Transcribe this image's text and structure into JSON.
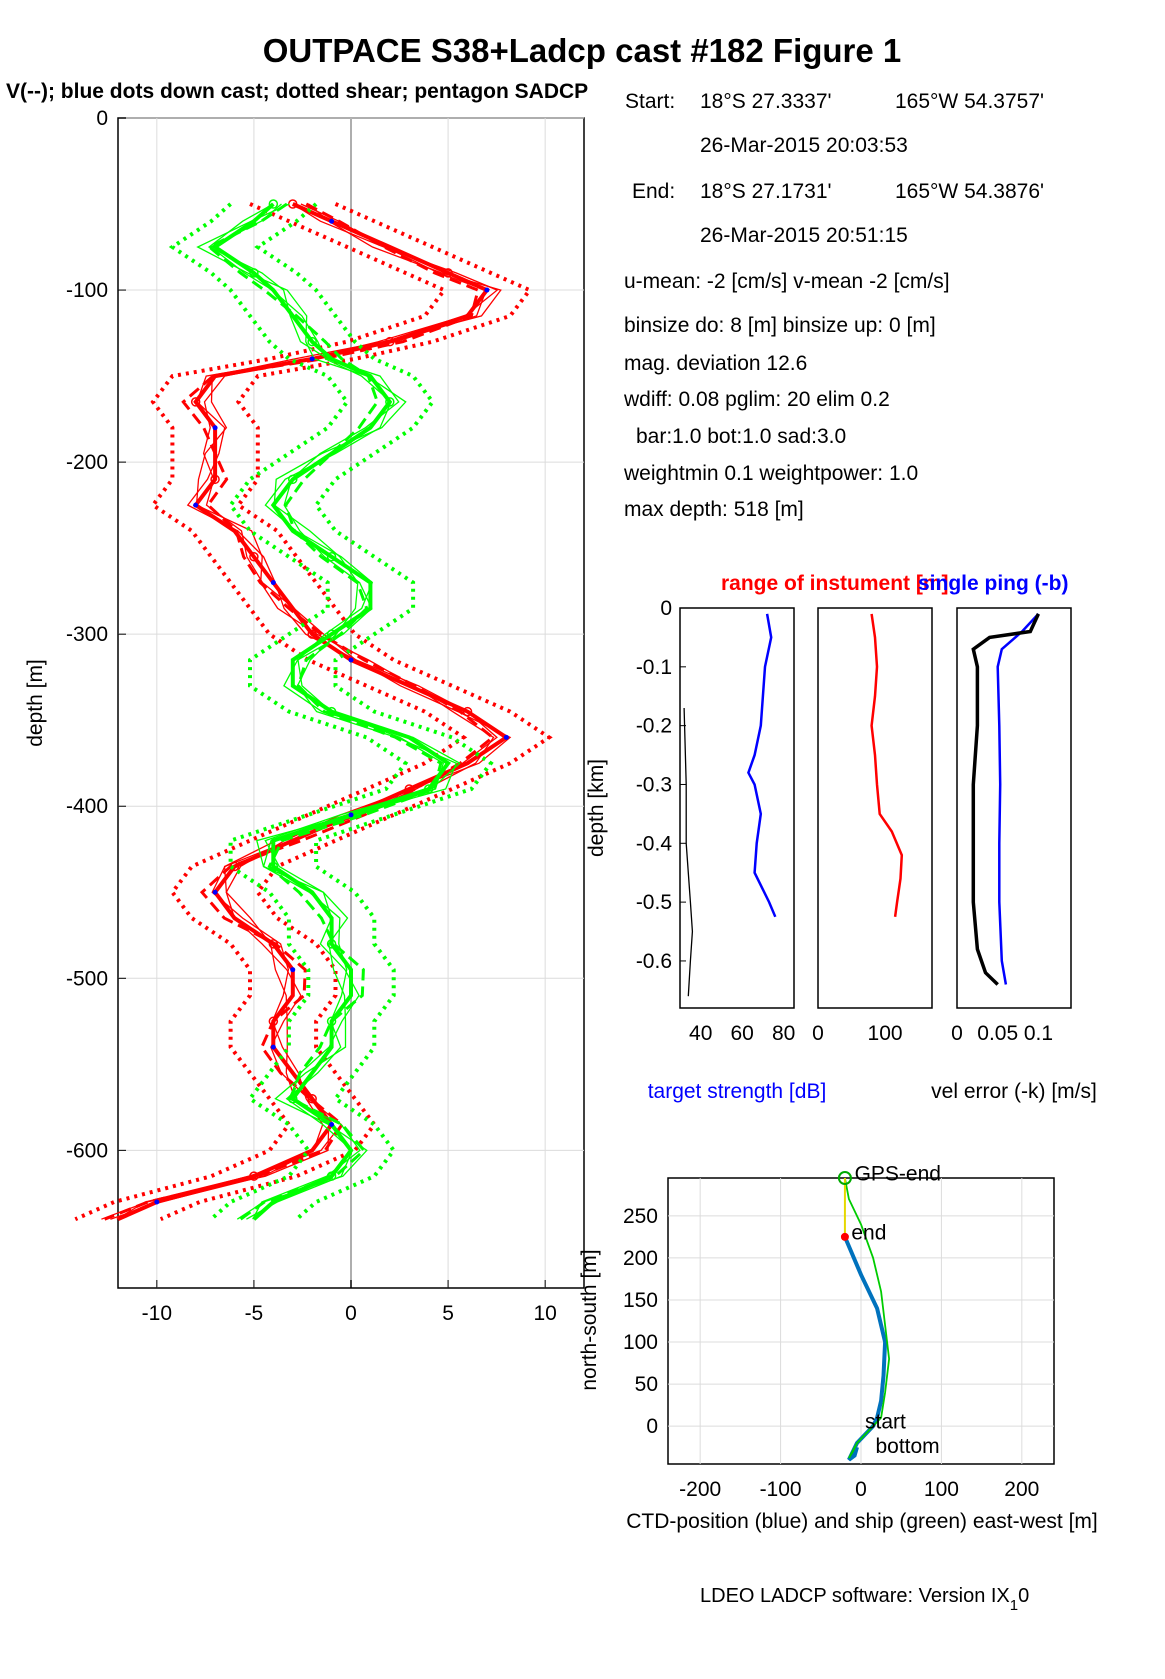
{
  "title": "OUTPACE S38+Ladcp cast #182  Figure 1",
  "subtitle": "V(--); blue dots down cast; dotted shear; pentagon SADCP",
  "info": {
    "start_label": "Start:",
    "start_lat": "18°S 27.3337'",
    "start_lon": "165°W 54.3757'",
    "start_time": "26-Mar-2015 20:03:53",
    "end_label": "End:",
    "end_lat": "18°S 27.1731'",
    "end_lon": "165°W 54.3876'",
    "end_time": "26-Mar-2015 20:51:15",
    "umean": "u-mean:  -2 [cm/s]    v-mean  -2 [cm/s]",
    "binsize": "binsize do: 8 [m]  binsize up:  0 [m]",
    "magdev": "mag. deviation 12.6",
    "wdiff": "wdiff: 0.08  pglim: 20  elim 0.2",
    "bar": "bar:1.0 bot:1.0 sad:3.0",
    "weight": "weightmin 0.1  weightpower: 1.0",
    "maxdepth": "max depth: 518 [m]"
  },
  "footer": "LDEO LADCP software: Version IX",
  "footer_sub": "1",
  "footer_end": "0",
  "colors": {
    "u": "#ff0000",
    "v": "#00ff00",
    "dots": "#0000ff",
    "ts": "#0000ff",
    "ctd": "#0072bd",
    "ship": "#00cc00"
  },
  "chart_data": [
    {
      "type": "line",
      "id": "velocity-profile",
      "ylabel": "depth [m]",
      "xlim": [
        -12,
        12
      ],
      "ylim": [
        -680,
        0
      ],
      "xticks": [
        "-10",
        "-5",
        "0",
        "5",
        "10"
      ],
      "yticks": [
        "0",
        "-100",
        "-200",
        "-300",
        "-400",
        "-500",
        "-600"
      ],
      "grid": true,
      "series": [
        {
          "color": "red",
          "depth": [
            -50,
            -60,
            -75,
            -90,
            -100,
            -115,
            -130,
            -140,
            -150,
            -165,
            -180,
            -195,
            -210,
            -225,
            -240,
            -255,
            -270,
            -285,
            -300,
            -315,
            -330,
            -345,
            -360,
            -375,
            -390,
            -405,
            -420,
            -435,
            -450,
            -465,
            -480,
            -495,
            -510,
            -525,
            -540,
            -555,
            -570,
            -585,
            -600,
            -615,
            -630,
            -640
          ],
          "u": [
            -3,
            -1,
            2,
            5,
            7,
            6,
            2,
            -2,
            -7,
            -8,
            -7,
            -7,
            -7,
            -8,
            -6,
            -5,
            -4,
            -3,
            -2,
            0,
            3,
            6,
            8,
            6,
            3,
            0,
            -3,
            -6,
            -7,
            -6,
            -4,
            -3,
            -3,
            -4,
            -4,
            -3,
            -2,
            -1,
            -2,
            -5,
            -10,
            -12
          ]
        },
        {
          "color": "green",
          "depth": [
            -50,
            -60,
            -75,
            -90,
            -100,
            -115,
            -130,
            -140,
            -150,
            -165,
            -180,
            -195,
            -210,
            -225,
            -240,
            -255,
            -270,
            -285,
            -300,
            -315,
            -330,
            -345,
            -360,
            -375,
            -390,
            -405,
            -420,
            -435,
            -450,
            -465,
            -480,
            -495,
            -510,
            -525,
            -540,
            -555,
            -570,
            -585,
            -600,
            -615,
            -630,
            -640
          ],
          "v": [
            -4,
            -5,
            -7,
            -5,
            -4,
            -3,
            -2,
            -1,
            1,
            2,
            1,
            -1,
            -3,
            -4,
            -3,
            -1,
            1,
            1,
            -1,
            -3,
            -3,
            -1,
            3,
            5,
            4,
            0,
            -4,
            -4,
            -2,
            -1,
            -1,
            0,
            0,
            -1,
            -1,
            -2,
            -3,
            -1,
            0,
            -1,
            -4,
            -5
          ]
        }
      ]
    },
    {
      "type": "line",
      "id": "target-strength",
      "ylabel": "depth [km]",
      "xlabel": "target strength [dB]",
      "xticks": [
        "40",
        "60",
        "80"
      ],
      "yticks": [
        "0",
        "-0.1",
        "-0.2",
        "-0.3",
        "-0.4",
        "-0.5",
        "-0.6"
      ],
      "xlim": [
        30,
        85
      ],
      "ylim": [
        -0.68,
        0
      ],
      "series": [
        {
          "name": "target strength",
          "color": "blue",
          "depth": [
            -0.01,
            -0.05,
            -0.1,
            -0.15,
            -0.2,
            -0.25,
            -0.28,
            -0.3,
            -0.35,
            -0.4,
            -0.45,
            -0.5,
            -0.525
          ],
          "x": [
            72,
            74,
            71,
            70,
            69,
            66,
            63,
            66,
            69,
            67,
            66,
            73,
            76
          ]
        },
        {
          "name": "black",
          "color": "black",
          "depth": [
            -0.17,
            -0.3,
            -0.4,
            -0.5,
            -0.55,
            -0.6,
            -0.66
          ],
          "x": [
            32,
            33,
            33,
            35,
            36,
            35,
            34
          ]
        }
      ]
    },
    {
      "type": "line",
      "id": "instrument-range",
      "xticks": [
        "0",
        "100"
      ],
      "xlim": [
        0,
        170
      ],
      "ylim": [
        -0.68,
        0
      ],
      "series": [
        {
          "name": "range",
          "color": "red",
          "depth": [
            -0.01,
            -0.05,
            -0.1,
            -0.15,
            -0.2,
            -0.25,
            -0.3,
            -0.35,
            -0.38,
            -0.42,
            -0.46,
            -0.5,
            -0.525
          ],
          "x": [
            80,
            85,
            88,
            85,
            80,
            85,
            88,
            92,
            110,
            125,
            123,
            118,
            115
          ]
        }
      ]
    },
    {
      "type": "line",
      "id": "velocity-error",
      "xlabel": "vel error (-k) [m/s]",
      "xticks": [
        "0",
        "0.05",
        "0.1"
      ],
      "xlim": [
        0,
        0.14
      ],
      "ylim": [
        -0.68,
        0
      ],
      "series": [
        {
          "name": "single ping",
          "color": "blue",
          "depth": [
            -0.01,
            -0.04,
            -0.07,
            -0.1,
            -0.2,
            -0.3,
            -0.4,
            -0.5,
            -0.6,
            -0.64
          ],
          "x": [
            0.1,
            0.08,
            0.055,
            0.05,
            0.052,
            0.053,
            0.052,
            0.052,
            0.055,
            0.06
          ]
        },
        {
          "name": "vel error",
          "color": "black",
          "depth": [
            -0.01,
            -0.04,
            -0.05,
            -0.07,
            -0.1,
            -0.2,
            -0.3,
            -0.4,
            -0.5,
            -0.58,
            -0.62,
            -0.64
          ],
          "x": [
            0.1,
            0.09,
            0.04,
            0.02,
            0.025,
            0.025,
            0.02,
            0.02,
            0.02,
            0.025,
            0.035,
            0.05
          ]
        }
      ]
    },
    {
      "type": "line",
      "id": "position",
      "xlabel": "CTD-position (blue) and ship (green) east-west [m]",
      "ylabel": "north-south [m]",
      "xticks": [
        "-200",
        "-100",
        "0",
        "100",
        "200"
      ],
      "yticks": [
        "0",
        "50",
        "100",
        "150",
        "200",
        "250"
      ],
      "xlim": [
        -240,
        240
      ],
      "ylim": [
        -45,
        295
      ],
      "grid": true,
      "annotations": [
        "GPS-end",
        "end",
        "start",
        "bottom"
      ],
      "series": [
        {
          "name": "CTD-position",
          "color": "#0072bd",
          "x": [
            -20,
            0,
            20,
            30,
            28,
            25,
            20,
            15,
            5,
            -5,
            -10,
            -15,
            -8,
            -5
          ],
          "y": [
            225,
            180,
            140,
            100,
            60,
            30,
            10,
            0,
            -10,
            -20,
            -30,
            -40,
            -35,
            -25
          ]
        },
        {
          "name": "ship",
          "color": "#00cc00",
          "x": [
            -20,
            -15,
            0,
            15,
            25,
            30,
            35,
            30,
            25,
            10,
            -5,
            -15,
            -10,
            -5
          ],
          "y": [
            295,
            270,
            240,
            200,
            160,
            120,
            80,
            40,
            10,
            -5,
            -20,
            -38,
            -30,
            -20
          ]
        }
      ]
    }
  ]
}
